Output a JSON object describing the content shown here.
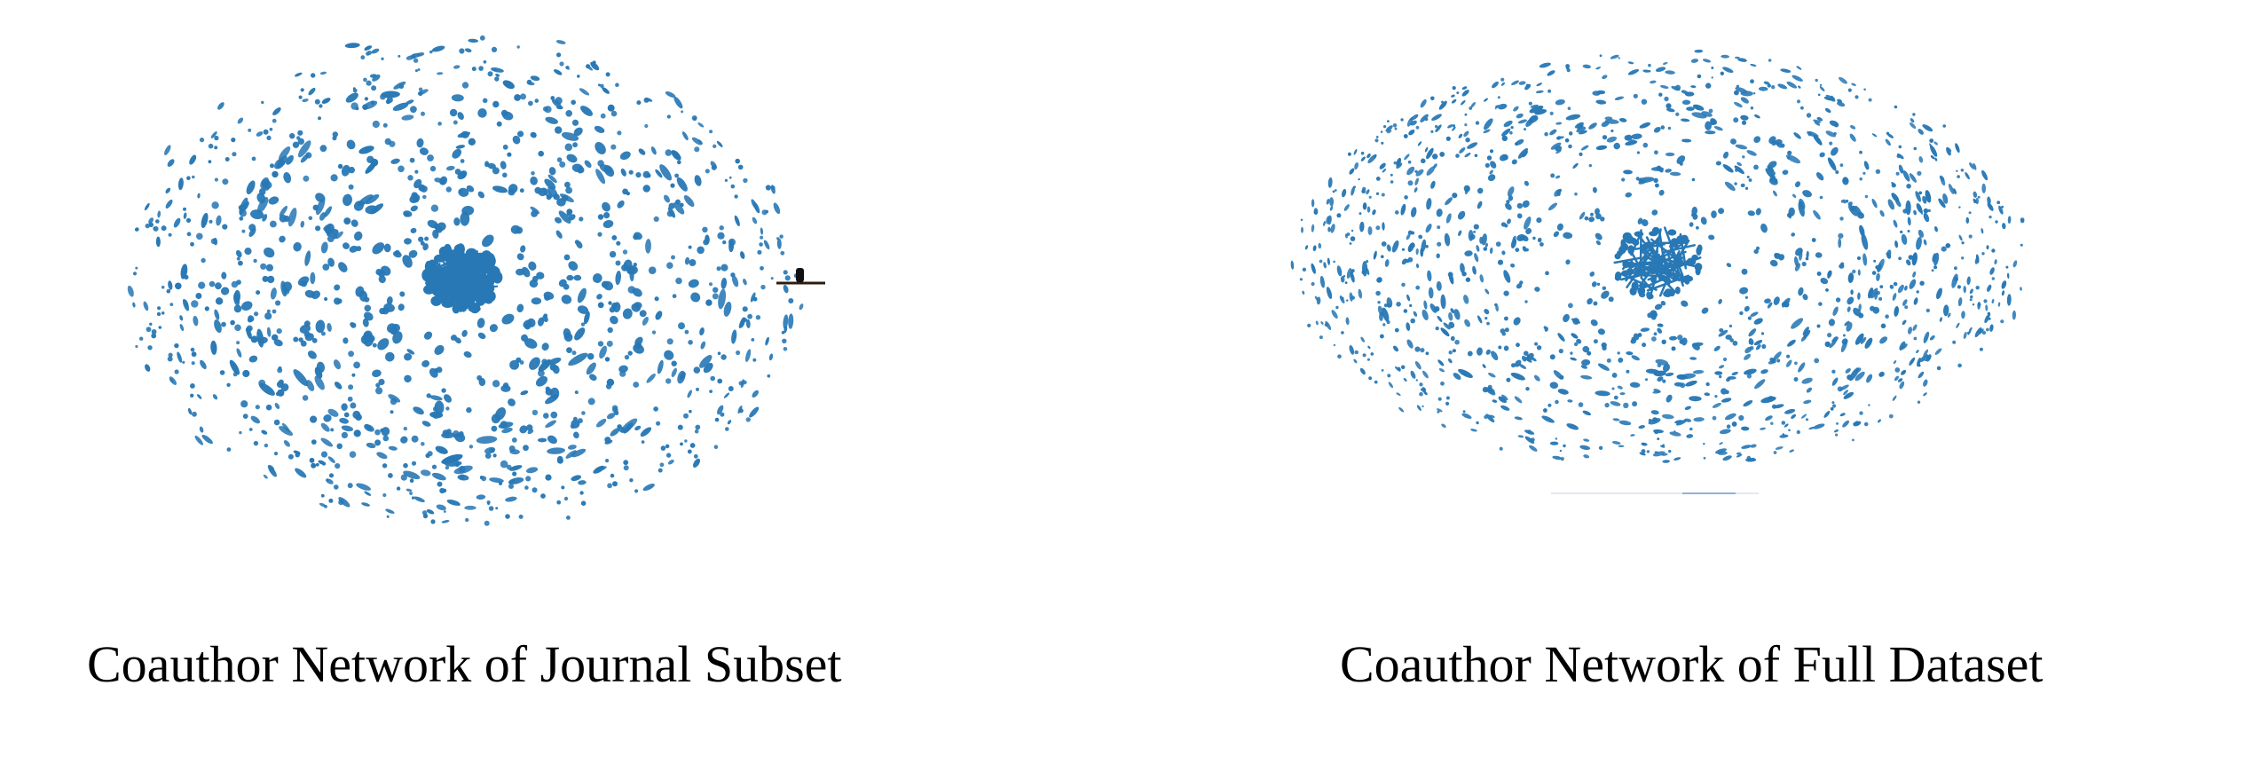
{
  "figure": {
    "node_color": "#2878b5",
    "panels": [
      {
        "id": "journal-subset",
        "caption": "Coauthor Network of Journal Subset"
      },
      {
        "id": "full-dataset",
        "caption": "Coauthor Network of Full Dataset"
      }
    ]
  }
}
